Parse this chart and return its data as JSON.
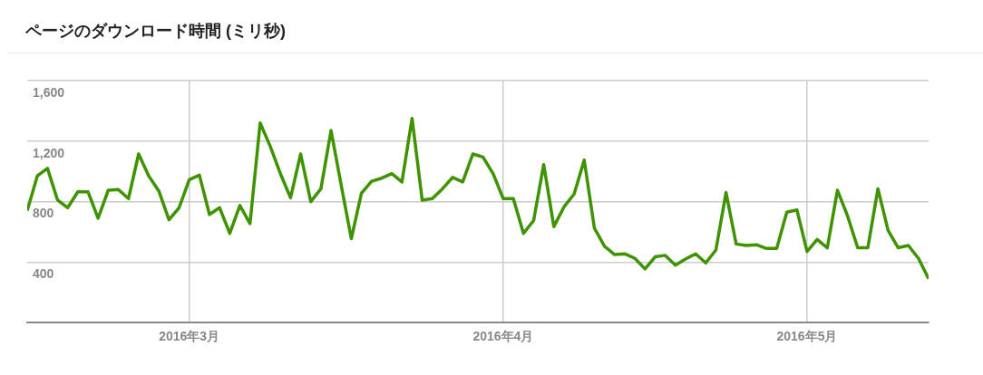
{
  "chart_data": {
    "type": "line",
    "title": "ページのダウンロード時間 (ミリ秒)",
    "x": [
      "2016-02-14",
      "2016-02-15",
      "2016-02-16",
      "2016-02-17",
      "2016-02-18",
      "2016-02-19",
      "2016-02-20",
      "2016-02-21",
      "2016-02-22",
      "2016-02-23",
      "2016-02-24",
      "2016-02-25",
      "2016-02-26",
      "2016-02-27",
      "2016-02-28",
      "2016-02-29",
      "2016-03-01",
      "2016-03-02",
      "2016-03-03",
      "2016-03-04",
      "2016-03-05",
      "2016-03-06",
      "2016-03-07",
      "2016-03-08",
      "2016-03-09",
      "2016-03-10",
      "2016-03-11",
      "2016-03-12",
      "2016-03-13",
      "2016-03-14",
      "2016-03-15",
      "2016-03-16",
      "2016-03-17",
      "2016-03-18",
      "2016-03-19",
      "2016-03-20",
      "2016-03-21",
      "2016-03-22",
      "2016-03-23",
      "2016-03-24",
      "2016-03-25",
      "2016-03-26",
      "2016-03-27",
      "2016-03-28",
      "2016-03-29",
      "2016-03-30",
      "2016-03-31",
      "2016-04-01",
      "2016-04-02",
      "2016-04-03",
      "2016-04-04",
      "2016-04-05",
      "2016-04-06",
      "2016-04-07",
      "2016-04-08",
      "2016-04-09",
      "2016-04-10",
      "2016-04-11",
      "2016-04-12",
      "2016-04-13",
      "2016-04-14",
      "2016-04-15",
      "2016-04-16",
      "2016-04-17",
      "2016-04-18",
      "2016-04-19",
      "2016-04-20",
      "2016-04-21",
      "2016-04-22",
      "2016-04-23",
      "2016-04-24",
      "2016-04-25",
      "2016-04-26",
      "2016-04-27",
      "2016-04-28",
      "2016-04-29",
      "2016-04-30",
      "2016-05-01",
      "2016-05-02",
      "2016-05-03",
      "2016-05-04",
      "2016-05-05",
      "2016-05-06",
      "2016-05-07",
      "2016-05-08",
      "2016-05-09",
      "2016-05-10",
      "2016-05-11",
      "2016-05-12",
      "2016-05-13"
    ],
    "series": [
      {
        "color": "#3f9300",
        "values": [
          740,
          970,
          1020,
          810,
          760,
          865,
          865,
          690,
          875,
          880,
          820,
          1115,
          970,
          870,
          680,
          760,
          945,
          975,
          715,
          760,
          590,
          775,
          655,
          1320,
          1165,
          985,
          825,
          1115,
          800,
          885,
          1270,
          910,
          555,
          855,
          935,
          955,
          985,
          930,
          1350,
          810,
          820,
          885,
          960,
          930,
          1115,
          1095,
          985,
          820,
          820,
          590,
          675,
          1045,
          635,
          765,
          850,
          1075,
          625,
          505,
          450,
          455,
          425,
          355,
          435,
          445,
          380,
          420,
          455,
          395,
          480,
          860,
          520,
          510,
          515,
          490,
          490,
          730,
          745,
          470,
          550,
          495,
          875,
          705,
          495,
          495,
          885,
          610,
          495,
          510,
          425,
          290
        ]
      }
    ],
    "xlim": [
      "2016-02-14",
      "2016-05-13"
    ],
    "xticks": [
      {
        "value": "2016-03-01",
        "label": "2016年3月"
      },
      {
        "value": "2016-04-01",
        "label": "2016年4月"
      },
      {
        "value": "2016-05-01",
        "label": "2016年5月"
      }
    ],
    "ylim": [
      0,
      1600
    ],
    "yticks": [
      400,
      800,
      {
        "value": 1200,
        "label": "1,200"
      },
      {
        "value": 1600,
        "label": "1,600"
      }
    ],
    "grid": true,
    "legend": false,
    "marker": "none",
    "line_style": "solid"
  }
}
